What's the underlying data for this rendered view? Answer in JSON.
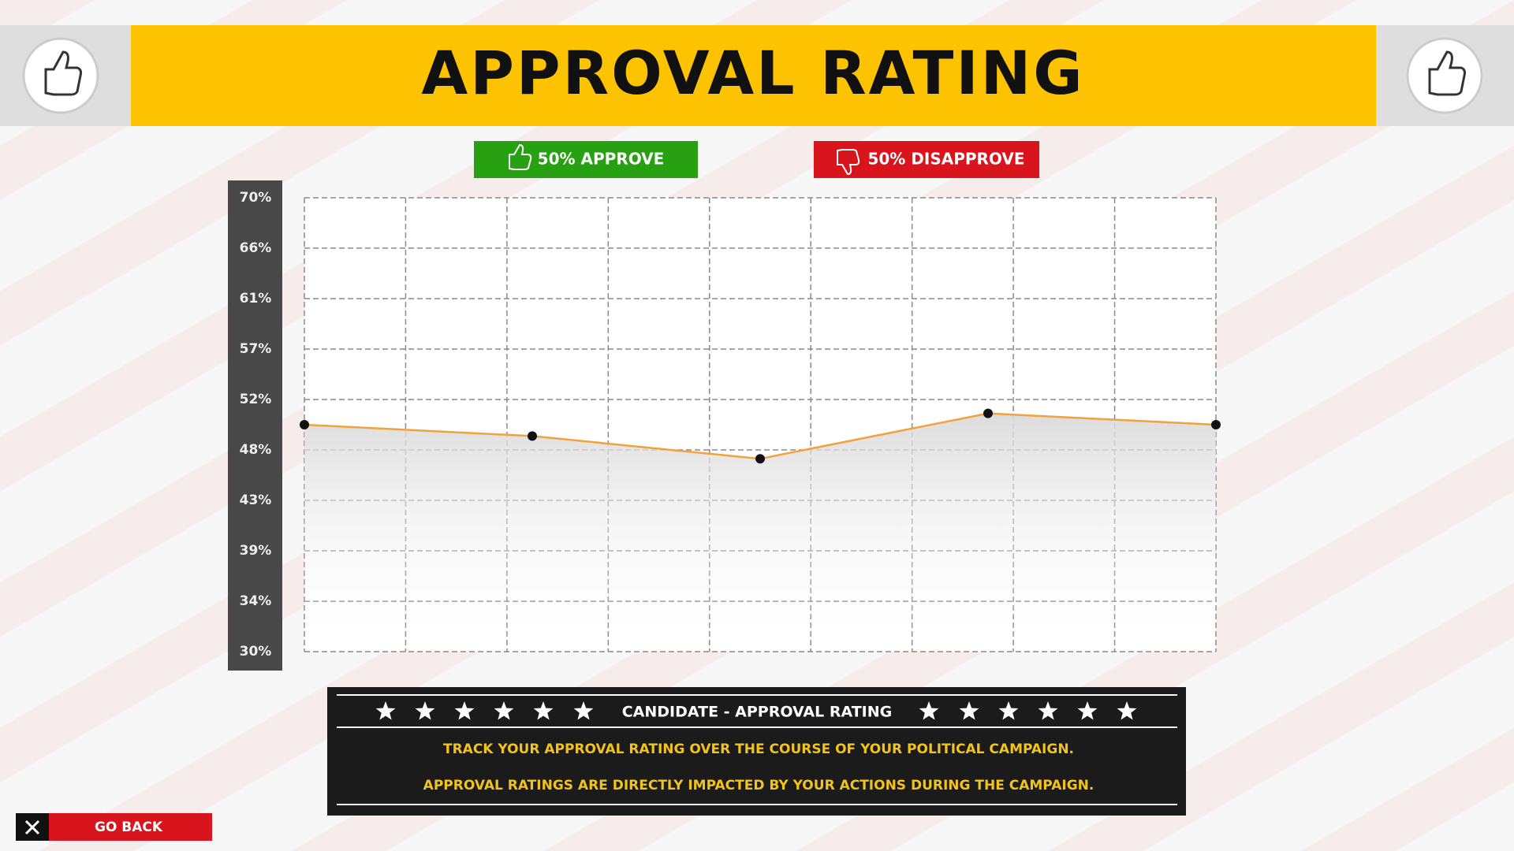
{
  "header": {
    "title": "APPROVAL RATING"
  },
  "legend": {
    "approve": "50% APPROVE",
    "disapprove": "50% DISAPPROVE"
  },
  "chart_data": {
    "type": "line",
    "categories": [
      null,
      null,
      null,
      null,
      null
    ],
    "values": [
      50,
      49,
      47,
      51,
      50
    ],
    "color": "#f2a23c",
    "ylim": [
      30,
      70
    ],
    "yticks": [
      {
        "value": 30,
        "label": "30%"
      },
      {
        "value": 34.44,
        "label": "34%"
      },
      {
        "value": 38.89,
        "label": "39%"
      },
      {
        "value": 43.33,
        "label": "43%"
      },
      {
        "value": 47.78,
        "label": "48%"
      },
      {
        "value": 52.22,
        "label": "52%"
      },
      {
        "value": 56.67,
        "label": "57%"
      },
      {
        "value": 61.11,
        "label": "61%"
      },
      {
        "value": 65.56,
        "label": "66%"
      },
      {
        "value": 70,
        "label": "70%"
      }
    ],
    "grid": true
  },
  "panel": {
    "heading": "CANDIDATE - APPROVAL RATING",
    "lines": [
      "TRACK YOUR APPROVAL RATING OVER THE COURSE OF YOUR POLITICAL CAMPAIGN.",
      "APPROVAL RATINGS ARE DIRECTLY IMPACTED BY YOUR ACTIONS DURING THE CAMPAIGN."
    ]
  },
  "footer": {
    "go_back": "GO BACK"
  }
}
